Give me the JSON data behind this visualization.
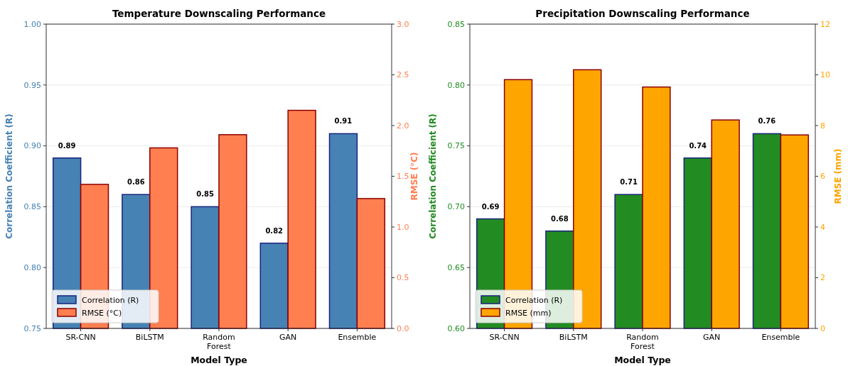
{
  "chart_data": [
    {
      "type": "bar",
      "title": "Temperature Downscaling Performance",
      "xlabel": "Model Type",
      "ylabel": "Correlation Coefficient (R)",
      "y2label": "RMSE (°C)",
      "categories": [
        "SR-CNN",
        "BiLSTM",
        "Random\nForest",
        "GAN",
        "Ensemble"
      ],
      "series": [
        {
          "name": "Correlation (R)",
          "color": "#4682b4",
          "values": [
            0.89,
            0.86,
            0.85,
            0.82,
            0.91
          ],
          "value_labels": [
            "0.89",
            "0.86",
            "0.85",
            "0.82",
            "0.91"
          ]
        },
        {
          "name": "RMSE (°C)",
          "color": "#ff7f50",
          "axis": "y2",
          "values": [
            1.42,
            1.78,
            1.91,
            2.15,
            1.28
          ]
        }
      ],
      "ylim": [
        0.75,
        1.0
      ],
      "yticks": [
        {
          "value": 0.75,
          "label": "0.75"
        },
        {
          "value": 0.8,
          "label": "0.80"
        },
        {
          "value": 0.85,
          "label": "0.85"
        },
        {
          "value": 0.9,
          "label": "0.90"
        },
        {
          "value": 0.95,
          "label": "0.95"
        },
        {
          "value": 1.0,
          "label": "1.00"
        }
      ],
      "y2lim": [
        0,
        3
      ],
      "y2ticks": [
        {
          "value": 0,
          "label": "0.0"
        },
        {
          "value": 0.5,
          "label": "0.5"
        },
        {
          "value": 1,
          "label": "1.0"
        },
        {
          "value": 1.5,
          "label": "1.5"
        },
        {
          "value": 2,
          "label": "2.0"
        },
        {
          "value": 2.5,
          "label": "2.5"
        },
        {
          "value": 3,
          "label": "3.0"
        }
      ],
      "grid": "y",
      "legend": "bottom left"
    },
    {
      "type": "bar",
      "title": "Precipitation Downscaling Performance",
      "xlabel": "Model Type",
      "ylabel": "Correlation Coefficient (R)",
      "y2label": "RMSE (mm)",
      "categories": [
        "SR-CNN",
        "BiLSTM",
        "Random\nForest",
        "GAN",
        "Ensemble"
      ],
      "series": [
        {
          "name": "Correlation (R)",
          "color": "#228b22",
          "values": [
            0.69,
            0.68,
            0.71,
            0.74,
            0.76
          ],
          "value_labels": [
            "0.69",
            "0.68",
            "0.71",
            "0.74",
            "0.76"
          ]
        },
        {
          "name": "RMSE (mm)",
          "color": "#ffa500",
          "axis": "y2",
          "values": [
            9.81,
            10.2,
            9.52,
            8.22,
            7.63
          ]
        }
      ],
      "ylim": [
        0.6,
        0.85
      ],
      "yticks": [
        {
          "value": 0.6,
          "label": "0.60"
        },
        {
          "value": 0.65,
          "label": "0.65"
        },
        {
          "value": 0.7,
          "label": "0.70"
        },
        {
          "value": 0.75,
          "label": "0.75"
        },
        {
          "value": 0.8,
          "label": "0.80"
        },
        {
          "value": 0.85,
          "label": "0.85"
        }
      ],
      "y2lim": [
        0,
        12
      ],
      "y2ticks": [
        0,
        2,
        4,
        6,
        8,
        10,
        12
      ],
      "grid": "y",
      "legend": "bottom left"
    }
  ]
}
